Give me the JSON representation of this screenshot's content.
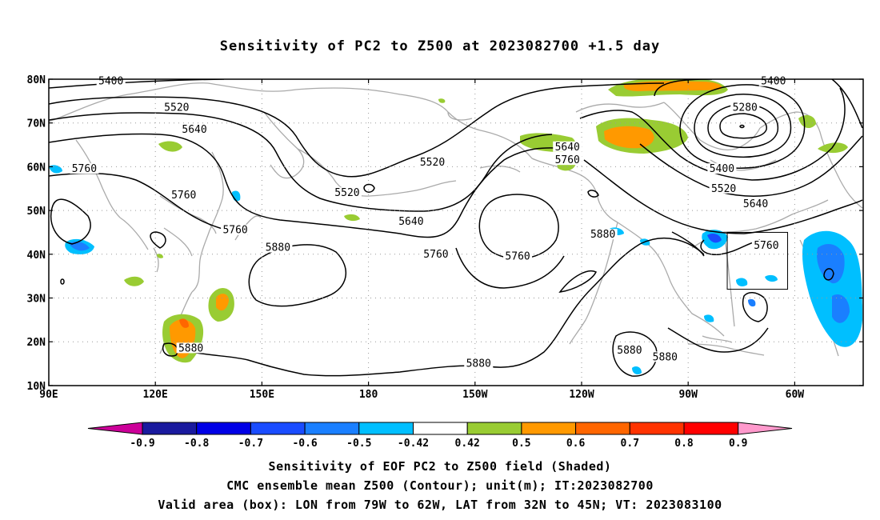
{
  "title": "Sensitivity of PC2 to Z500 at 2023082700 +1.5 day",
  "axes": {
    "lon_labels": [
      "90E",
      "120E",
      "150E",
      "180",
      "150W",
      "120W",
      "90W",
      "60W"
    ],
    "lat_labels": [
      "80N",
      "70N",
      "60N",
      "50N",
      "40N",
      "30N",
      "20N",
      "10N"
    ]
  },
  "contour_labels": [
    {
      "text": "5400",
      "lon": 107.5,
      "lat": 79.5
    },
    {
      "text": "5400",
      "lon": -66,
      "lat": 79.5
    },
    {
      "text": "5520",
      "lon": 126,
      "lat": 73.5
    },
    {
      "text": "5640",
      "lon": 131,
      "lat": 68.5
    },
    {
      "text": "5280",
      "lon": -74,
      "lat": 73.5
    },
    {
      "text": "5640",
      "lon": -124,
      "lat": 64.5
    },
    {
      "text": "5760",
      "lon": -124,
      "lat": 61.5
    },
    {
      "text": "5520",
      "lon": -162,
      "lat": 61
    },
    {
      "text": "5760",
      "lon": 100,
      "lat": 59.5
    },
    {
      "text": "5760",
      "lon": 128,
      "lat": 53.5
    },
    {
      "text": "5520",
      "lon": 174,
      "lat": 54
    },
    {
      "text": "5400",
      "lon": -80.5,
      "lat": 59.5
    },
    {
      "text": "5520",
      "lon": -80,
      "lat": 55
    },
    {
      "text": "5640",
      "lon": -71,
      "lat": 51.5
    },
    {
      "text": "5640",
      "lon": -168,
      "lat": 47.5
    },
    {
      "text": "5760",
      "lon": 142.5,
      "lat": 45.5
    },
    {
      "text": "5880",
      "lon": -114,
      "lat": 44.5
    },
    {
      "text": "5760",
      "lon": -68,
      "lat": 42
    },
    {
      "text": "5880",
      "lon": 154.5,
      "lat": 41.5
    },
    {
      "text": "5760",
      "lon": -161,
      "lat": 40
    },
    {
      "text": "5760",
      "lon": -138,
      "lat": 39.5
    },
    {
      "text": "5880",
      "lon": 130,
      "lat": 18.5
    },
    {
      "text": "5880",
      "lon": -106.5,
      "lat": 18
    },
    {
      "text": "5880",
      "lon": -96.5,
      "lat": 16.5
    },
    {
      "text": "5880",
      "lon": -149,
      "lat": 15
    }
  ],
  "colorbar": {
    "labels": [
      "-0.9",
      "-0.8",
      "-0.7",
      "-0.6",
      "-0.5",
      "-0.42",
      "0.42",
      "0.5",
      "0.6",
      "0.7",
      "0.8",
      "0.9"
    ],
    "colors": [
      "#cc0099",
      "#1a1a9e",
      "#0000e6",
      "#1a4cff",
      "#1a7fff",
      "#00bfff",
      "#ffffff",
      "#99cc33",
      "#ff9900",
      "#ff6600",
      "#ff3300",
      "#ff0000",
      "#ff99cc"
    ]
  },
  "captions": [
    "Sensitivity of EOF PC2 to Z500 field (Shaded)",
    "CMC ensemble mean Z500 (Contour); unit(m); IT:2023082700",
    "Valid area (box): LON from 79W to 62W, LAT from 32N to 45N; VT: 2023083100"
  ],
  "valid_box": {
    "lon_from": -79,
    "lon_to": -62,
    "lat_from": 32,
    "lat_to": 45
  }
}
